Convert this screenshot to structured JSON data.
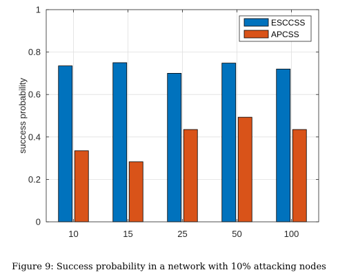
{
  "caption": "Figure 9: Success probability in a network with 10% attacking nodes",
  "colors": {
    "ESCCSS": "#0072BD",
    "APCSS": "#D95319"
  },
  "chart_data": {
    "type": "bar",
    "title": "",
    "xlabel": "",
    "ylabel": "success probability",
    "categories": [
      "10",
      "15",
      "25",
      "50",
      "100"
    ],
    "series": [
      {
        "name": "ESCCSS",
        "values": [
          0.735,
          0.75,
          0.7,
          0.748,
          0.72
        ]
      },
      {
        "name": "APCSS",
        "values": [
          0.335,
          0.283,
          0.435,
          0.493,
          0.435
        ]
      }
    ],
    "ylim": [
      0,
      1
    ],
    "yticks": [
      "0",
      "0.2",
      "0.4",
      "0.6",
      "0.8",
      "1"
    ],
    "grid": true,
    "legend_position": "top-right"
  }
}
